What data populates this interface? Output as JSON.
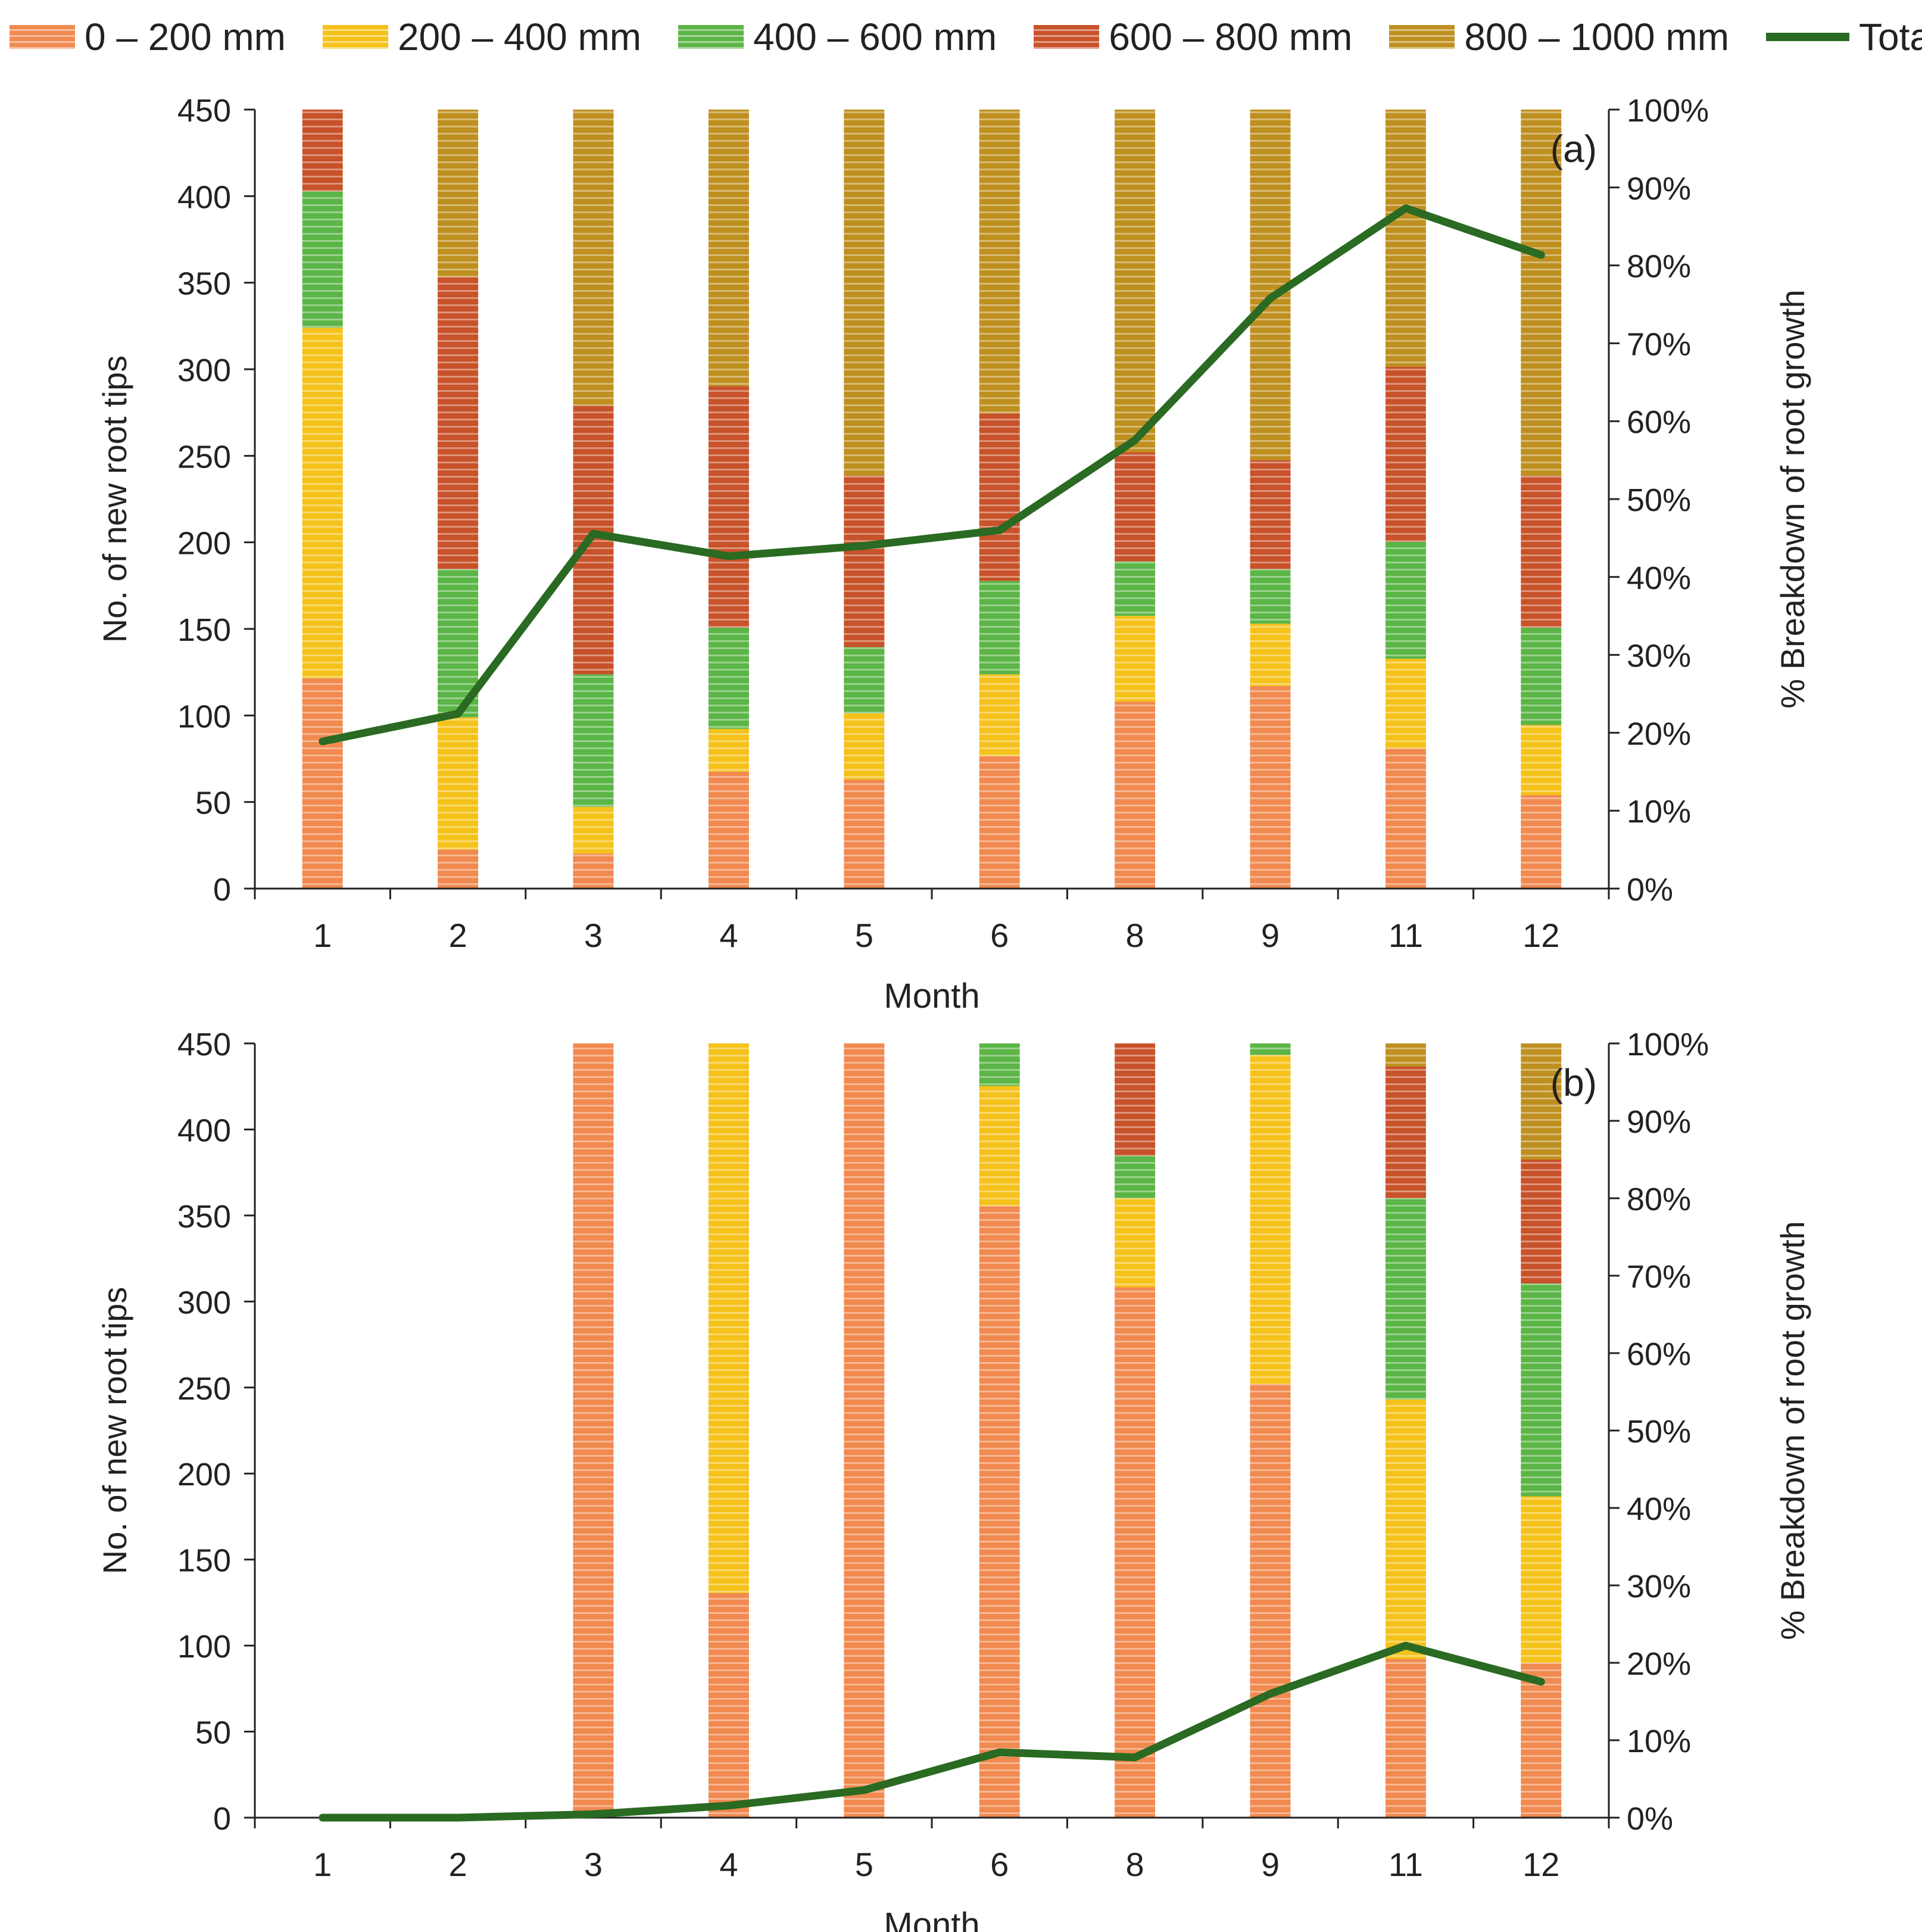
{
  "legend": {
    "items": [
      {
        "label": "0 – 200 mm",
        "color": "#f08a50",
        "icon": "hatched-swatch"
      },
      {
        "label": "200 – 400 mm",
        "color": "#f5c21b",
        "icon": "hatched-swatch"
      },
      {
        "label": "400 – 600 mm",
        "color": "#5cb547",
        "icon": "hatched-swatch"
      },
      {
        "label": "600 – 800 mm",
        "color": "#c8522a",
        "icon": "hatched-swatch"
      },
      {
        "label": "800 – 1000 mm",
        "color": "#bf9020",
        "icon": "hatched-swatch"
      }
    ],
    "total_label": "Total",
    "total_color": "#2a6a22"
  },
  "chart_data": [
    {
      "type": "bar",
      "stacked": "percent",
      "panel_label": "(a)",
      "xlabel": "Month",
      "ylabel": "No. of  new root tips",
      "y2label": "% Breakdown of root growth",
      "ylim": [
        0,
        450
      ],
      "y_ticks": [
        0,
        50,
        100,
        150,
        200,
        250,
        300,
        350,
        400,
        450
      ],
      "y2lim": [
        0,
        100
      ],
      "y2_ticks": [
        "0%",
        "10%",
        "20%",
        "30%",
        "40%",
        "50%",
        "60%",
        "70%",
        "80%",
        "90%",
        "100%"
      ],
      "categories": [
        "1",
        "2",
        "3",
        "4",
        "5",
        "6",
        "8",
        "9",
        "11",
        "12"
      ],
      "series": [
        {
          "name": "0 – 200 mm",
          "values": [
            27,
            5,
            4.5,
            15,
            14,
            17,
            24,
            26,
            18,
            12
          ]
        },
        {
          "name": "200 – 400 mm",
          "values": [
            45,
            17,
            6,
            5.5,
            8.5,
            10.5,
            11,
            8,
            11.5,
            9
          ]
        },
        {
          "name": "400 – 600 mm",
          "values": [
            17.5,
            19,
            17,
            13,
            8.5,
            12,
            7,
            7,
            15,
            12.5
          ]
        },
        {
          "name": "600 – 800 mm",
          "values": [
            10.5,
            37.5,
            34.5,
            31,
            22,
            21.5,
            14,
            14,
            22.5,
            19.5
          ]
        },
        {
          "name": "800 – 1000 mm",
          "values": [
            0,
            21.5,
            38,
            35.5,
            47,
            39,
            44,
            45,
            33,
            47
          ]
        }
      ],
      "total": {
        "name": "Total",
        "values": [
          85,
          101,
          205,
          192,
          198,
          207,
          259,
          341,
          393,
          366
        ]
      }
    },
    {
      "type": "bar",
      "stacked": "percent",
      "panel_label": "(b)",
      "xlabel": "Month",
      "ylabel": "No. of  new root tips",
      "y2label": "% Breakdown of root growth",
      "ylim": [
        0,
        450
      ],
      "y_ticks": [
        0,
        50,
        100,
        150,
        200,
        250,
        300,
        350,
        400,
        450
      ],
      "y2lim": [
        0,
        100
      ],
      "y2_ticks": [
        "0%",
        "10%",
        "20%",
        "30%",
        "40%",
        "50%",
        "60%",
        "70%",
        "80%",
        "90%",
        "100%"
      ],
      "categories": [
        "1",
        "2",
        "3",
        "4",
        "5",
        "6",
        "8",
        "9",
        "11",
        "12"
      ],
      "series": [
        {
          "name": "0 – 200 mm",
          "values": [
            0,
            0,
            100,
            29,
            100,
            79,
            68.5,
            56,
            20.5,
            20
          ]
        },
        {
          "name": "200 – 400 mm",
          "values": [
            0,
            0,
            0,
            71,
            0,
            15.5,
            11.5,
            42.5,
            33.5,
            21.5
          ]
        },
        {
          "name": "400 – 600 mm",
          "values": [
            0,
            0,
            0,
            0,
            0,
            5.5,
            5.5,
            1.5,
            26,
            27.5
          ]
        },
        {
          "name": "600 – 800 mm",
          "values": [
            0,
            0,
            0,
            0,
            0,
            0,
            14.5,
            0,
            17,
            16
          ]
        },
        {
          "name": "800 – 1000 mm",
          "values": [
            0,
            0,
            0,
            0,
            0,
            0,
            0,
            0,
            3,
            15
          ]
        }
      ],
      "total": {
        "name": "Total",
        "values": [
          0,
          0,
          2,
          7,
          16,
          38,
          35,
          72,
          100,
          79
        ]
      }
    }
  ]
}
